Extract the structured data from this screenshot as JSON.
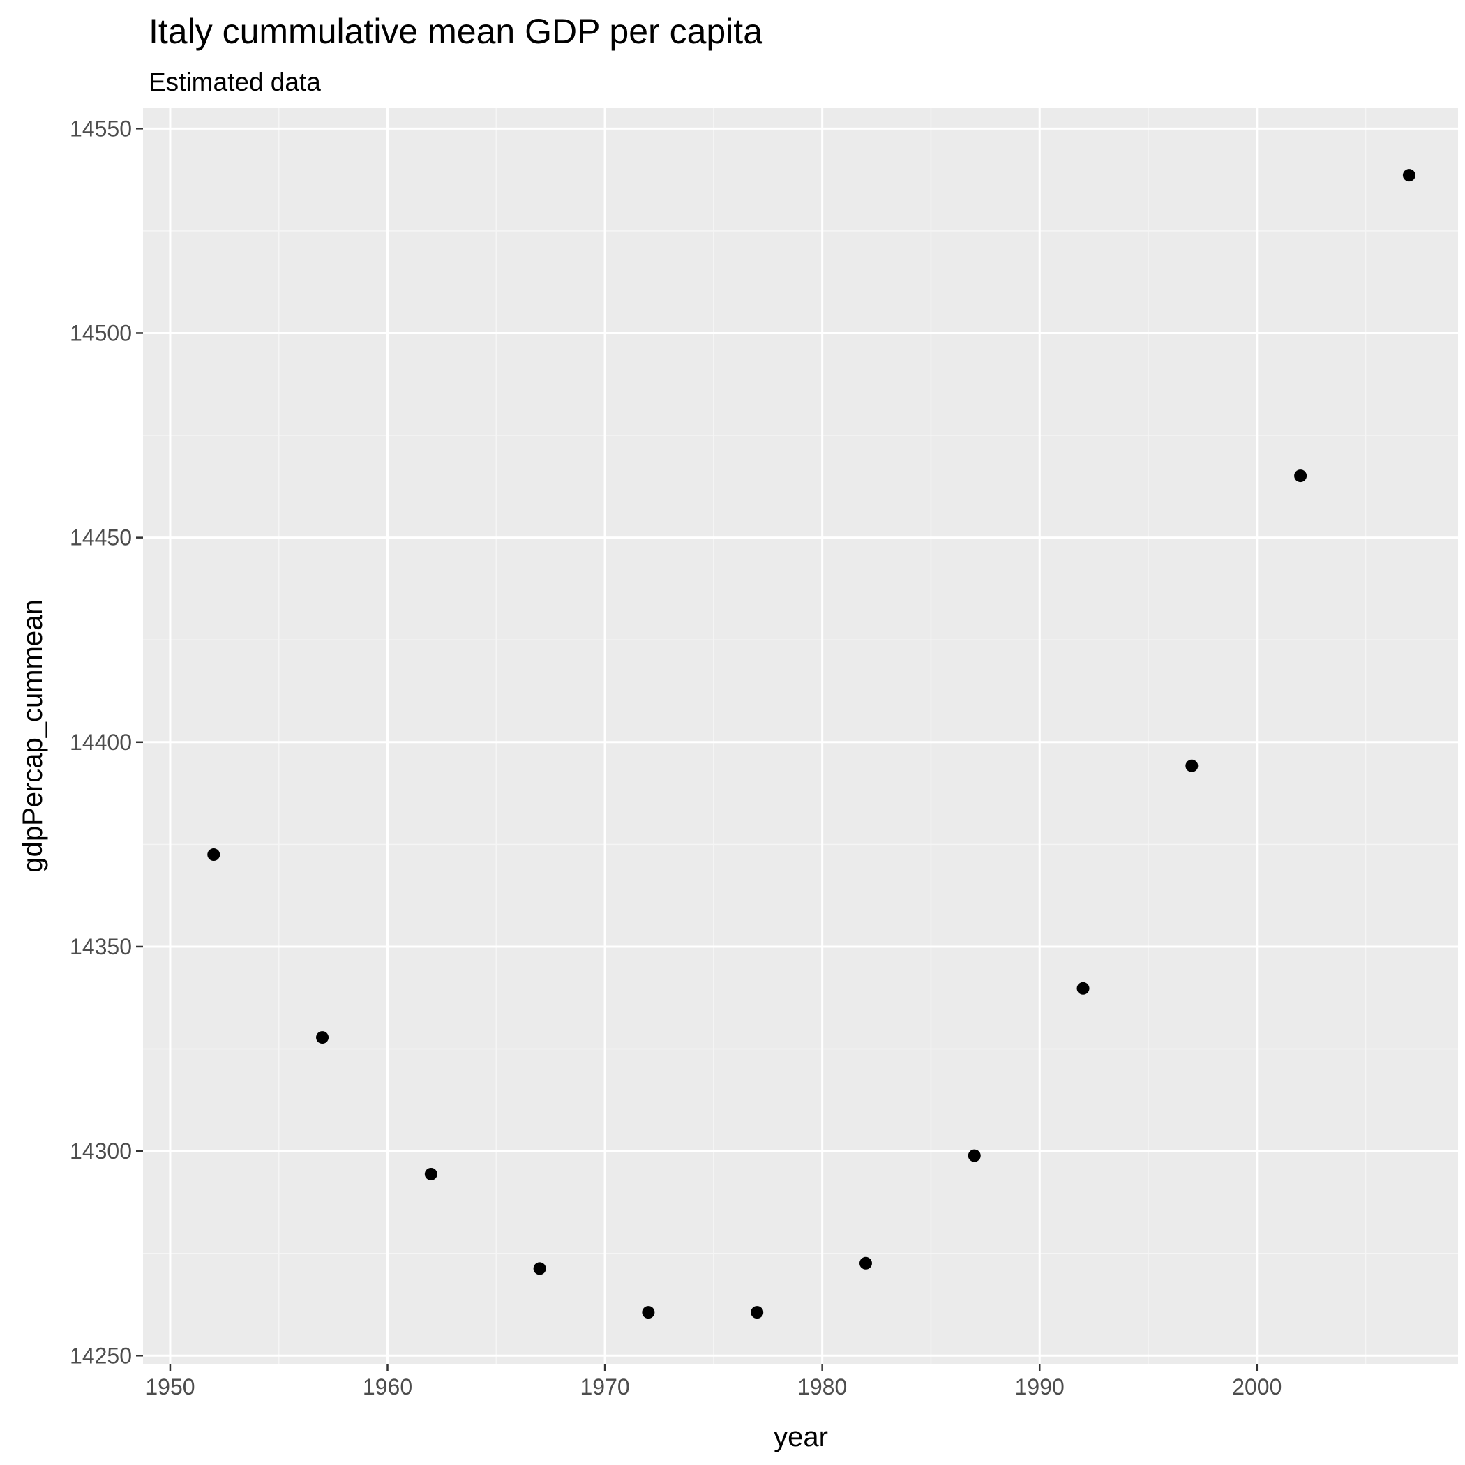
{
  "chart_data": {
    "type": "scatter",
    "title": "Italy  cummulative mean GDP per capita",
    "subtitle": "Estimated data",
    "xlabel": "year",
    "ylabel": "gdpPercap_cummean",
    "xlim": [
      1948.75,
      2009.25
    ],
    "ylim": [
      14248,
      14555
    ],
    "x_ticks": [
      1950,
      1960,
      1970,
      1980,
      1990,
      2000
    ],
    "y_ticks": [
      14250,
      14300,
      14350,
      14400,
      14450,
      14500,
      14550
    ],
    "grid": true,
    "legend": "none",
    "x": [
      1952,
      1957,
      1962,
      1967,
      1972,
      1977,
      1982,
      1987,
      1992,
      1997,
      2002,
      2007
    ],
    "y": [
      14372.5,
      14327.8,
      14294.4,
      14271.3,
      14260.6,
      14260.6,
      14272.6,
      14298.9,
      14339.8,
      14394.2,
      14465.1,
      14538.6
    ]
  },
  "colors": {
    "panel_background": "#ebebeb",
    "grid_major": "#ffffff",
    "grid_minor": "#f5f5f5",
    "point": "#000000",
    "tick_label": "#4d4d4d",
    "axis_tick": "#333333"
  }
}
